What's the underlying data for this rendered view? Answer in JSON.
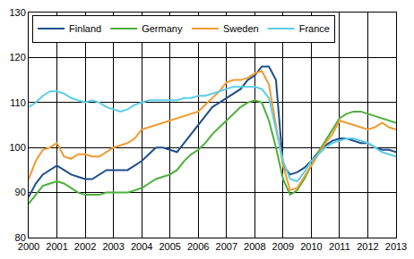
{
  "chart_data": {
    "type": "line",
    "x": [
      2000,
      2000.25,
      2000.5,
      2000.75,
      2001,
      2001.25,
      2001.5,
      2001.75,
      2002,
      2002.25,
      2002.5,
      2002.75,
      2003,
      2003.25,
      2003.5,
      2003.75,
      2004,
      2004.25,
      2004.5,
      2004.75,
      2005,
      2005.25,
      2005.5,
      2005.75,
      2006,
      2006.25,
      2006.5,
      2006.75,
      2007,
      2007.25,
      2007.5,
      2007.75,
      2008,
      2008.25,
      2008.5,
      2008.75,
      2009,
      2009.25,
      2009.5,
      2009.75,
      2010,
      2010.25,
      2010.5,
      2010.75,
      2011,
      2011.25,
      2011.5,
      2011.75,
      2012,
      2012.25,
      2012.5,
      2012.75,
      2013
    ],
    "series": [
      {
        "name": "Finland",
        "color": "#1f4e8c",
        "values": [
          89,
          92,
          94,
          95,
          96,
          95,
          94,
          93.5,
          93,
          93,
          94,
          95,
          95,
          95,
          95,
          96,
          97,
          98.5,
          100,
          100,
          99.5,
          99,
          101,
          103,
          105,
          107,
          109,
          110,
          111,
          112,
          113,
          115,
          116,
          118,
          118,
          115,
          96,
          94,
          94.5,
          95.5,
          97,
          99,
          100.5,
          101.5,
          102,
          102,
          101.5,
          101,
          101,
          100,
          99.5,
          99.5,
          99
        ]
      },
      {
        "name": "Germany",
        "color": "#4caf3a",
        "values": [
          87.5,
          89.5,
          91.5,
          92,
          92.5,
          92,
          91,
          90,
          89.5,
          89.5,
          89.5,
          90,
          90,
          90,
          90,
          90.5,
          91,
          92,
          93,
          93.5,
          94,
          95,
          97,
          98.5,
          99.5,
          101,
          103,
          104.5,
          106,
          107.5,
          109,
          110,
          110.5,
          110,
          106,
          100,
          93,
          89.5,
          90.5,
          93,
          96,
          99,
          101.5,
          104,
          106.5,
          107.5,
          108,
          108,
          107.5,
          107,
          106.5,
          106,
          105.5
        ]
      },
      {
        "name": "Sweden",
        "color": "#f29a2e",
        "values": [
          93,
          97,
          99.5,
          100,
          101,
          98,
          97.5,
          98.5,
          98.5,
          98,
          98,
          99,
          100,
          100.5,
          101,
          102,
          104,
          104.5,
          105,
          105.5,
          106,
          106.5,
          107,
          107.5,
          108,
          109.5,
          111,
          112.5,
          114.5,
          115,
          115,
          115.5,
          116.5,
          117,
          114,
          105,
          96,
          90.5,
          91,
          93.5,
          96,
          98.5,
          101,
          103,
          106,
          105.5,
          105,
          104.5,
          104,
          104.5,
          105.5,
          104.5,
          104
        ]
      },
      {
        "name": "France",
        "color": "#5ccde8",
        "values": [
          109,
          110,
          111.5,
          112.5,
          112.5,
          112,
          111,
          110.5,
          110,
          110.5,
          110,
          109,
          108.5,
          108,
          108.5,
          109.5,
          110,
          110.5,
          110.5,
          110.5,
          110.5,
          110.5,
          111,
          111,
          111.5,
          111.5,
          112,
          112.5,
          113,
          113.5,
          113.5,
          113.5,
          113.5,
          113,
          111,
          104,
          97,
          93,
          92.5,
          94.5,
          97,
          98.5,
          100,
          101,
          101.5,
          102,
          102,
          101.5,
          101,
          100,
          99,
          98.5,
          98
        ]
      }
    ],
    "xlim": [
      2000,
      2013
    ],
    "xticks": [
      2000,
      2001,
      2002,
      2003,
      2004,
      2005,
      2006,
      2007,
      2008,
      2009,
      2010,
      2011,
      2012,
      2013
    ],
    "ylim": [
      80,
      130
    ],
    "yticks": [
      80,
      90,
      100,
      110,
      120,
      130
    ],
    "grid": true,
    "legend": "top-left"
  }
}
